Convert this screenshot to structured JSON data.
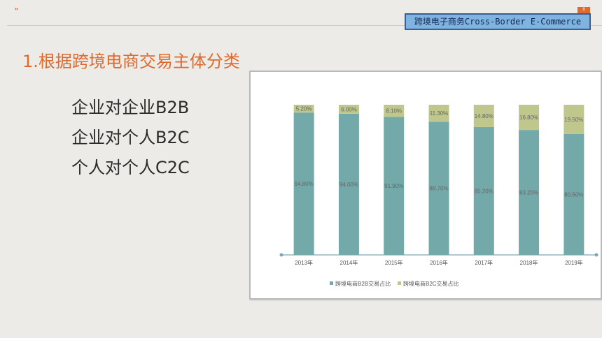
{
  "header": {
    "mark": "\"",
    "badge": "跨境电子商务Cross-Border E-Commerce",
    "page_number": "8"
  },
  "title": "1.根据跨境电商交易主体分类",
  "bullets": [
    "企业对企业B2B",
    "企业对个人B2C",
    "个人对个人C2C"
  ],
  "colors": {
    "b2b": "#73a9a9",
    "b2c": "#bfc78c",
    "accent": "#e06a2c",
    "axis": "#7fa8ad"
  },
  "chart_data": {
    "type": "bar",
    "stacked": true,
    "categories": [
      "2013年",
      "2014年",
      "2015年",
      "2016年",
      "2017年",
      "2018年",
      "2019年"
    ],
    "series": [
      {
        "name": "跨境电商B2B交易占比",
        "values": [
          94.8,
          94.0,
          91.9,
          88.7,
          85.2,
          83.2,
          80.5
        ],
        "labels": [
          "94.80%",
          "94.00%",
          "91.90%",
          "88.70%",
          "85.20%",
          "83.20%",
          "80.50%"
        ]
      },
      {
        "name": "跨境电商B2C交易占比",
        "values": [
          5.2,
          6.0,
          8.1,
          11.3,
          14.8,
          16.8,
          19.5
        ],
        "labels": [
          "5.20%",
          "6.00%",
          "8.10%",
          "11.30%",
          "14.80%",
          "16.80%",
          "19.50%"
        ]
      }
    ],
    "ylim": [
      0,
      100
    ],
    "grid": false,
    "legend_position": "bottom"
  }
}
